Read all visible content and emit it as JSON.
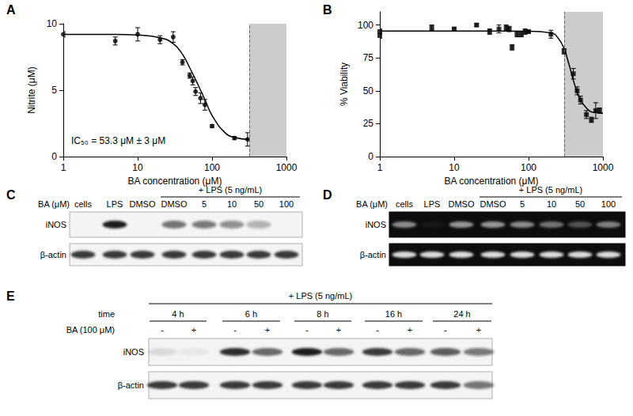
{
  "chart_data": [
    {
      "panel": "A",
      "type": "scatter",
      "xlabel": "BA concentration (μM)",
      "ylabel": "Nitrite (μM)",
      "annotation": "IC₅₀ = 53.3 μM ± 3 μM",
      "log": "x",
      "grid": false,
      "color": "#000000",
      "marker": "circle",
      "line_style": "solid",
      "xlim": [
        1,
        1000
      ],
      "xticks": [
        1,
        10,
        100,
        1000
      ],
      "ylim": [
        0,
        10
      ],
      "yticks": [
        0,
        5,
        10
      ],
      "x": [
        1,
        5,
        10,
        20,
        30,
        40,
        50,
        55,
        60,
        70,
        80,
        100,
        200,
        300
      ],
      "values": [
        9.2,
        8.7,
        9.2,
        8.8,
        9.0,
        7.1,
        6.1,
        5.7,
        4.9,
        4.4,
        3.9,
        2.3,
        1.4,
        1.3
      ],
      "errors": [
        0.2,
        0.3,
        0.5,
        0.3,
        0.4,
        0.2,
        0.2,
        0.3,
        0.3,
        0.4,
        0.4,
        0.1,
        0.1,
        0.5
      ],
      "fit": {
        "x": [
          1,
          5,
          10,
          20,
          30,
          40,
          50,
          60,
          70,
          80,
          100,
          150,
          200,
          316
        ],
        "values": [
          9.2,
          9.2,
          9.15,
          8.95,
          8.5,
          7.7,
          6.7,
          5.8,
          5.0,
          4.3,
          3.1,
          1.8,
          1.45,
          1.3
        ]
      },
      "shaded": [
        316,
        1000
      ]
    },
    {
      "panel": "B",
      "type": "scatter",
      "xlabel": "BA concentration (μM)",
      "ylabel": "% Viability",
      "log": "x",
      "grid": false,
      "color": "#000000",
      "marker": "square",
      "line_style": "solid",
      "xlim": [
        1,
        1000
      ],
      "xticks": [
        1,
        10,
        100,
        1000
      ],
      "ylim": [
        0,
        110
      ],
      "yticks": [
        0,
        25,
        50,
        75,
        100
      ],
      "x": [
        1,
        1,
        5,
        10,
        20,
        30,
        40,
        50,
        55,
        60,
        70,
        80,
        90,
        100,
        200,
        300,
        400,
        450,
        500,
        600,
        700,
        800,
        900
      ],
      "values": [
        92,
        95,
        98,
        97,
        100,
        95,
        97,
        98,
        97,
        83,
        93,
        93,
        95,
        95,
        93,
        80,
        63,
        50,
        43,
        32,
        28,
        35,
        35
      ],
      "errors": [
        2,
        2,
        2,
        1,
        1,
        2,
        3,
        2,
        2,
        2,
        2,
        2,
        2,
        1,
        3,
        2,
        4,
        3,
        3,
        3,
        2,
        6,
        2
      ],
      "fit": {
        "x": [
          1,
          10,
          100,
          200,
          250,
          300,
          350,
          400,
          450,
          500,
          600,
          700,
          800,
          1000
        ],
        "values": [
          95.5,
          95.5,
          95.3,
          94,
          90,
          82,
          70,
          58,
          49,
          43,
          37,
          34,
          33.5,
          33
        ]
      },
      "shaded": [
        300,
        1000
      ]
    }
  ],
  "blots": [
    {
      "panel": "C",
      "type": "western",
      "header": "+ LPS (5 ng/mL)",
      "condition_label": "BA (μM)",
      "lanes_before": [
        "cells",
        "LPS",
        "DMSO"
      ],
      "lanes_under_header": [
        "DMSO",
        "5",
        "10",
        "50",
        "100"
      ],
      "rows": [
        {
          "label": "iNOS",
          "intensity": [
            0,
            1.0,
            0,
            0.6,
            0.55,
            0.45,
            0.3,
            0
          ]
        },
        {
          "label": "β-actin",
          "intensity": [
            0.85,
            0.85,
            0.85,
            0.85,
            0.85,
            0.85,
            0.85,
            0.85
          ]
        }
      ]
    },
    {
      "panel": "D",
      "type": "gel",
      "header": "+ LPS (5 ng/mL)",
      "condition_label": "BA (μM)",
      "lanes_before": [
        "cells",
        "LPS",
        "DMSO"
      ],
      "lanes_under_header": [
        "DMSO",
        "5",
        "10",
        "50",
        "100"
      ],
      "rows": [
        {
          "label": "iNOS",
          "intensity": [
            0.55,
            0.05,
            0.6,
            0.6,
            0.55,
            0.45,
            0.3,
            0.5
          ]
        },
        {
          "label": "β-actin",
          "intensity": [
            0.9,
            0.9,
            0.9,
            0.9,
            0.9,
            0.9,
            0.9,
            0.9
          ]
        }
      ]
    },
    {
      "panel": "E",
      "type": "western",
      "header": "+ LPS (5 ng/mL)",
      "time_label": "time",
      "condition_label": "BA (100 μM)",
      "groups": [
        {
          "label": "4 h",
          "lanes": [
            "-",
            "+"
          ]
        },
        {
          "label": "6 h",
          "lanes": [
            "-",
            "+"
          ]
        },
        {
          "label": "8 h",
          "lanes": [
            "-",
            "+"
          ]
        },
        {
          "label": "16 h",
          "lanes": [
            "-",
            "+"
          ]
        },
        {
          "label": "24 h",
          "lanes": [
            "-",
            "+"
          ]
        }
      ],
      "rows": [
        {
          "label": "iNOS",
          "intensity": [
            0.1,
            0.05,
            0.9,
            0.65,
            1.0,
            0.65,
            0.85,
            0.65,
            0.7,
            0.55
          ]
        },
        {
          "label": "β-actin",
          "intensity": [
            0.85,
            0.85,
            0.85,
            0.85,
            0.85,
            0.85,
            0.85,
            0.85,
            0.85,
            0.6
          ]
        }
      ]
    }
  ]
}
